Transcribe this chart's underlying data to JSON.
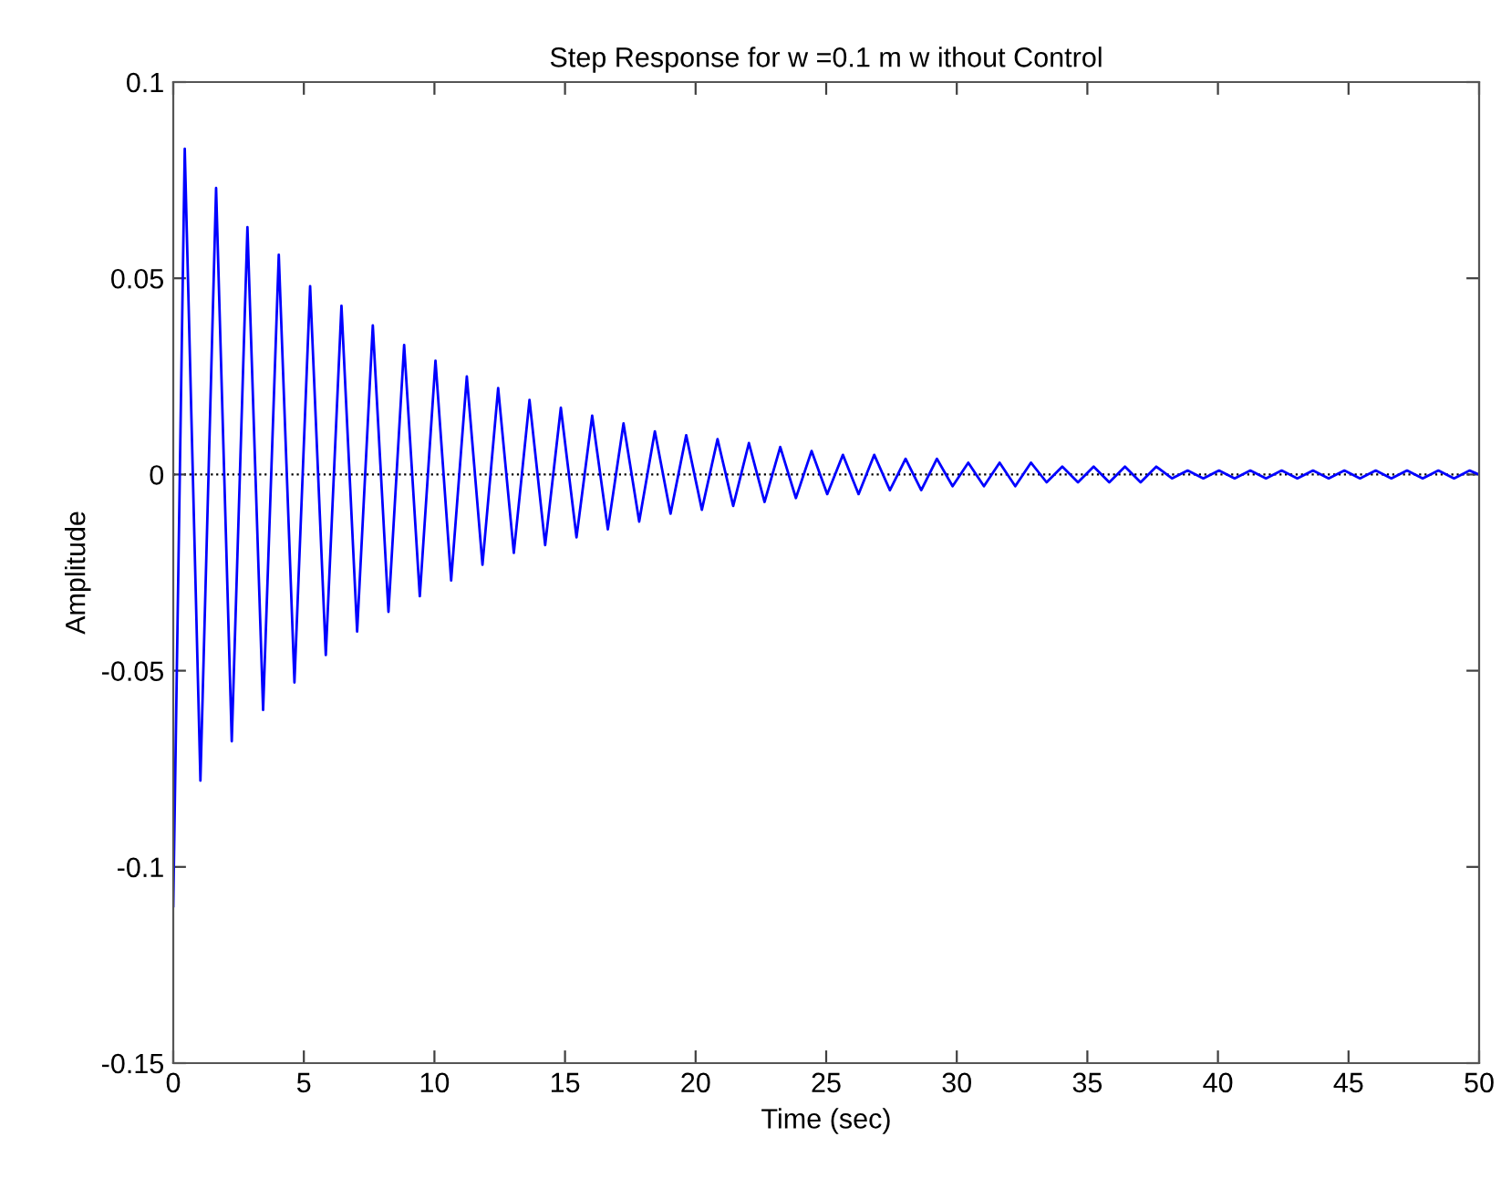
{
  "chart_data": {
    "type": "line",
    "title": "Step Response for w =0.1 m w ithout Control",
    "xlabel": "Time (sec)",
    "ylabel": "Amplitude",
    "x": [
      0,
      0.44,
      1.04,
      1.64,
      2.24,
      2.84,
      3.44,
      4.04,
      4.64,
      5.24,
      5.84,
      6.44,
      7.04,
      7.64,
      8.24,
      8.84,
      9.44,
      10.04,
      10.64,
      11.24,
      11.84,
      12.44,
      13.04,
      13.64,
      14.24,
      14.84,
      15.44,
      16.04,
      16.64,
      17.24,
      17.84,
      18.44,
      19.04,
      19.64,
      20.24,
      20.84,
      21.44,
      22.04,
      22.64,
      23.24,
      23.84,
      24.44,
      25.04,
      25.64,
      26.24,
      26.84,
      27.44,
      28.04,
      28.64,
      29.24,
      29.84,
      30.44,
      31.04,
      31.64,
      32.24,
      32.84,
      33.44,
      34.04,
      34.64,
      35.24,
      35.84,
      36.44,
      37.04,
      37.64,
      38.24,
      38.84,
      39.44,
      40.04,
      40.64,
      41.24,
      41.84,
      42.44,
      43.04,
      43.64,
      44.24,
      44.84,
      45.44,
      46.04,
      46.64,
      47.24,
      47.84,
      48.44,
      49.04,
      49.64,
      50
    ],
    "series": [
      {
        "color": "#0000ff",
        "values": [
          -0.11,
          0.083,
          -0.078,
          0.073,
          -0.068,
          0.063,
          -0.06,
          0.056,
          -0.053,
          0.048,
          -0.046,
          0.043,
          -0.04,
          0.038,
          -0.035,
          0.033,
          -0.031,
          0.029,
          -0.027,
          0.025,
          -0.023,
          0.022,
          -0.02,
          0.019,
          -0.018,
          0.017,
          -0.016,
          0.015,
          -0.014,
          0.013,
          -0.012,
          0.011,
          -0.01,
          0.01,
          -0.009,
          0.009,
          -0.008,
          0.008,
          -0.007,
          0.007,
          -0.006,
          0.006,
          -0.005,
          0.005,
          -0.005,
          0.005,
          -0.004,
          0.004,
          -0.004,
          0.004,
          -0.003,
          0.003,
          -0.003,
          0.003,
          -0.003,
          0.003,
          -0.002,
          0.002,
          -0.002,
          0.002,
          -0.002,
          0.002,
          -0.002,
          0.002,
          -0.001,
          0.001,
          -0.001,
          0.001,
          -0.001,
          0.001,
          -0.001,
          0.001,
          -0.001,
          0.001,
          -0.001,
          0.001,
          -0.001,
          0.001,
          -0.001,
          0.001,
          -0.001,
          0.001,
          -0.001,
          0.001,
          0
        ]
      }
    ],
    "xlim": [
      0,
      50
    ],
    "ylim": [
      -0.15,
      0.1
    ],
    "xticks": [
      0,
      5,
      10,
      15,
      20,
      25,
      30,
      35,
      40,
      45,
      50
    ],
    "yticks": [
      {
        "value": -0.15,
        "label": "-0.15"
      },
      {
        "value": -0.1,
        "label": "-0.1"
      },
      {
        "value": -0.05,
        "label": "-0.05"
      },
      0,
      {
        "value": 0.05,
        "label": "0.05"
      },
      {
        "value": 0.1,
        "label": "0.1"
      }
    ],
    "ref_lines": [
      {
        "axis": "y",
        "value": 0,
        "color": "#000000",
        "line_style": "dotted"
      }
    ],
    "grid": false,
    "legend": false,
    "marker": "none",
    "line_style": "solid"
  }
}
